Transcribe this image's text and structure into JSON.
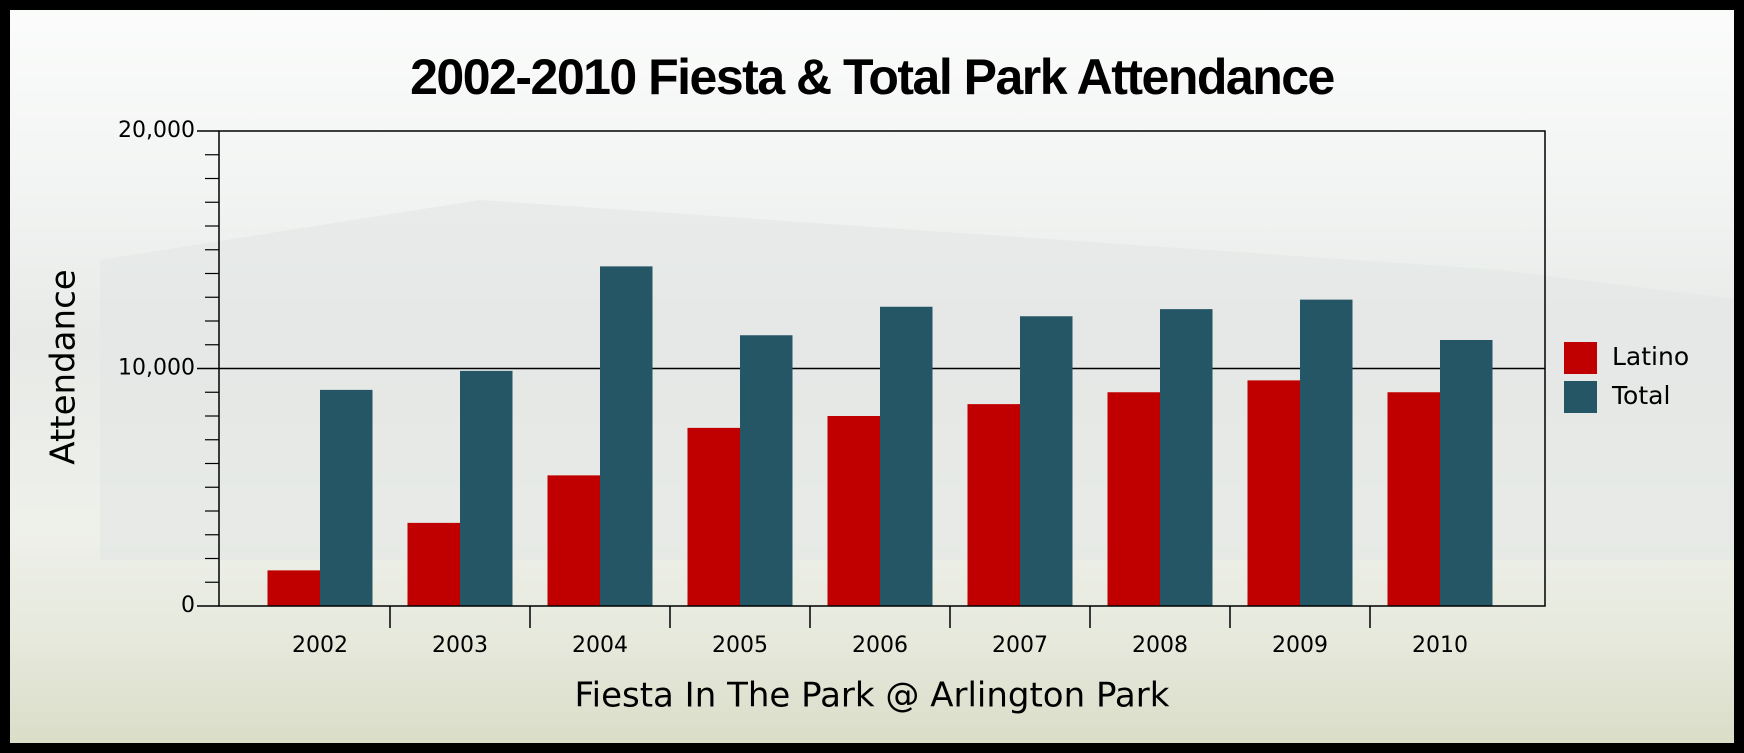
{
  "chart_data": {
    "type": "bar",
    "title": "2002-2010 Fiesta & Total Park  Attendance",
    "x_label": "Fiesta In The Park @ Arlington Park",
    "y_label": "Attendance",
    "categories": [
      "2002",
      "2003",
      "2004",
      "2005",
      "2006",
      "2007",
      "2008",
      "2009",
      "2010"
    ],
    "series": [
      {
        "name": "Latino",
        "color": "#c00000",
        "values": [
          1500,
          3500,
          5500,
          7500,
          8000,
          8500,
          9000,
          9500,
          9000
        ]
      },
      {
        "name": "Total",
        "color": "#255665",
        "values": [
          9100,
          9900,
          14300,
          11400,
          12600,
          12200,
          12500,
          12900,
          11200
        ]
      }
    ],
    "ylim": [
      0,
      20000
    ],
    "yticks": [
      0,
      {
        "value": 10000,
        "label": "10,000"
      },
      {
        "value": 20000,
        "label": "20,000"
      }
    ],
    "yminorticks": [
      1000,
      2000,
      3000,
      4000,
      5000,
      6000,
      7000,
      8000,
      9000,
      11000,
      12000,
      13000,
      14000,
      15000,
      16000,
      17000,
      18000,
      19000
    ],
    "grid": true,
    "legend": "right"
  }
}
